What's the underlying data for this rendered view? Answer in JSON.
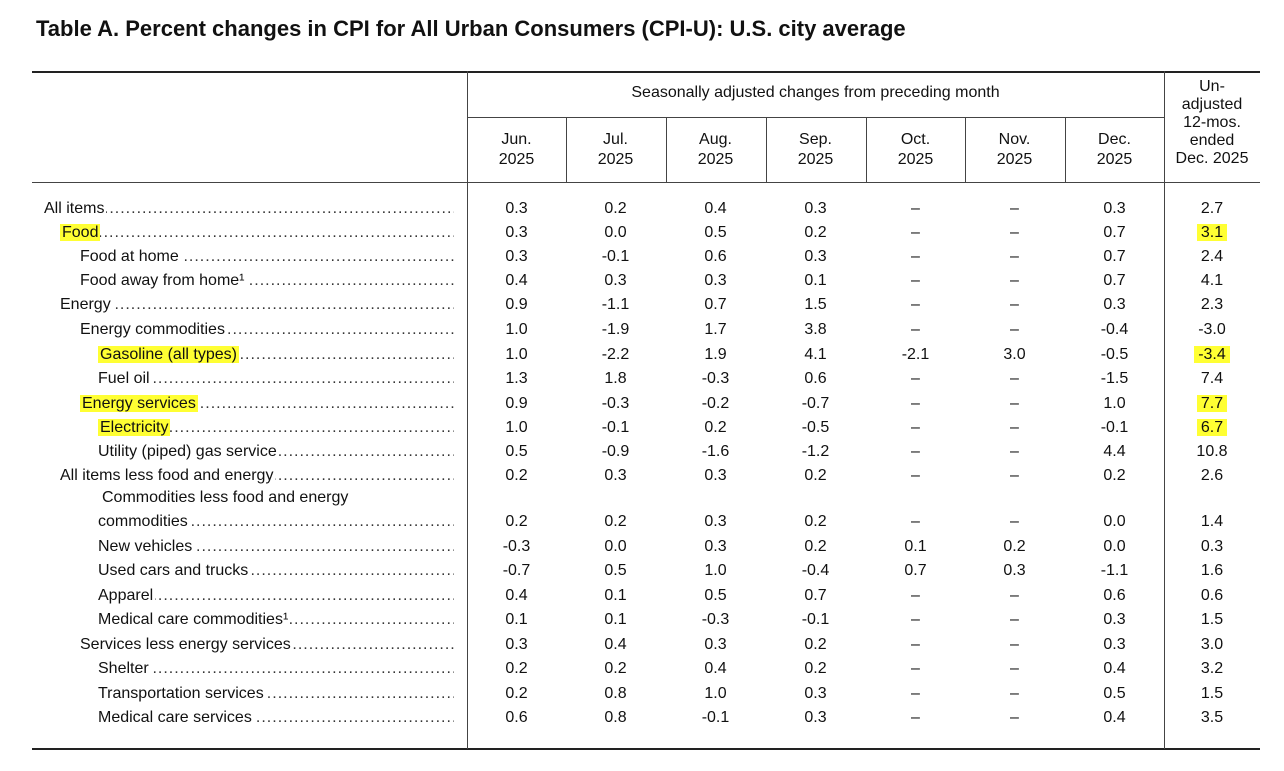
{
  "title": "Table A. Percent changes in CPI for All Urban Consumers (CPI-U): U.S. city average",
  "header": {
    "seasonally_adjusted": "Seasonally adjusted changes from preceding month",
    "months": [
      {
        "month": "Jun.",
        "year": "2025"
      },
      {
        "month": "Jul.",
        "year": "2025"
      },
      {
        "month": "Aug.",
        "year": "2025"
      },
      {
        "month": "Sep.",
        "year": "2025"
      },
      {
        "month": "Oct.",
        "year": "2025"
      },
      {
        "month": "Nov.",
        "year": "2025"
      },
      {
        "month": "Dec.",
        "year": "2025"
      }
    ],
    "unadjusted": [
      "Un-",
      "adjusted",
      "12-mos.",
      "ended",
      "Dec. 2025"
    ]
  },
  "highlight_color": "#ffff33",
  "rows": [
    {
      "label": "All items",
      "indent": 0,
      "highlight": false,
      "values": [
        "0.3",
        "0.2",
        "0.4",
        "0.3",
        "–",
        "–",
        "0.3"
      ],
      "annual": "2.7",
      "annual_highlight": false
    },
    {
      "label": "Food",
      "indent": 1,
      "highlight": true,
      "values": [
        "0.3",
        "0.0",
        "0.5",
        "0.2",
        "–",
        "–",
        "0.7"
      ],
      "annual": "3.1",
      "annual_highlight": true
    },
    {
      "label": "Food at home",
      "indent": 2,
      "highlight": false,
      "values": [
        "0.3",
        "-0.1",
        "0.6",
        "0.3",
        "–",
        "–",
        "0.7"
      ],
      "annual": "2.4",
      "annual_highlight": false
    },
    {
      "label": "Food away from home¹",
      "indent": 2,
      "highlight": false,
      "values": [
        "0.4",
        "0.3",
        "0.3",
        "0.1",
        "–",
        "–",
        "0.7"
      ],
      "annual": "4.1",
      "annual_highlight": false
    },
    {
      "label": "Energy",
      "indent": 1,
      "highlight": false,
      "values": [
        "0.9",
        "-1.1",
        "0.7",
        "1.5",
        "–",
        "–",
        "0.3"
      ],
      "annual": "2.3",
      "annual_highlight": false
    },
    {
      "label": "Energy commodities",
      "indent": 2,
      "highlight": false,
      "values": [
        "1.0",
        "-1.9",
        "1.7",
        "3.8",
        "–",
        "–",
        "-0.4"
      ],
      "annual": "-3.0",
      "annual_highlight": false
    },
    {
      "label": "Gasoline (all types)",
      "indent": 3,
      "highlight": true,
      "values": [
        "1.0",
        "-2.2",
        "1.9",
        "4.1",
        "-2.1",
        "3.0",
        "-0.5"
      ],
      "annual": "-3.4",
      "annual_highlight": true
    },
    {
      "label": "Fuel oil",
      "indent": 3,
      "highlight": false,
      "values": [
        "1.3",
        "1.8",
        "-0.3",
        "0.6",
        "–",
        "–",
        "-1.5"
      ],
      "annual": "7.4",
      "annual_highlight": false
    },
    {
      "label": "Energy services",
      "indent": 2,
      "highlight": true,
      "values": [
        "0.9",
        "-0.3",
        "-0.2",
        "-0.7",
        "–",
        "–",
        "1.0"
      ],
      "annual": "7.7",
      "annual_highlight": true
    },
    {
      "label": "Electricity",
      "indent": 3,
      "highlight": true,
      "values": [
        "1.0",
        "-0.1",
        "0.2",
        "-0.5",
        "–",
        "–",
        "-0.1"
      ],
      "annual": "6.7",
      "annual_highlight": true
    },
    {
      "label": "Utility (piped) gas service",
      "indent": 3,
      "highlight": false,
      "values": [
        "0.5",
        "-0.9",
        "-1.6",
        "-1.2",
        "–",
        "–",
        "4.4"
      ],
      "annual": "10.8",
      "annual_highlight": false
    },
    {
      "label": "All items less food and energy",
      "indent": 1,
      "highlight": false,
      "values": [
        "0.2",
        "0.3",
        "0.3",
        "0.2",
        "–",
        "–",
        "0.2"
      ],
      "annual": "2.6",
      "annual_highlight": false
    },
    {
      "label": "commodities",
      "label_line1": "Commodities less food and energy",
      "indent": 3,
      "highlight": false,
      "values": [
        "0.2",
        "0.2",
        "0.3",
        "0.2",
        "–",
        "–",
        "0.0"
      ],
      "annual": "1.4",
      "annual_highlight": false
    },
    {
      "label": "New vehicles",
      "indent": 3,
      "highlight": false,
      "values": [
        "-0.3",
        "0.0",
        "0.3",
        "0.2",
        "0.1",
        "0.2",
        "0.0"
      ],
      "annual": "0.3",
      "annual_highlight": false
    },
    {
      "label": "Used cars and trucks",
      "indent": 3,
      "highlight": false,
      "values": [
        "-0.7",
        "0.5",
        "1.0",
        "-0.4",
        "0.7",
        "0.3",
        "-1.1"
      ],
      "annual": "1.6",
      "annual_highlight": false
    },
    {
      "label": "Apparel",
      "indent": 3,
      "highlight": false,
      "values": [
        "0.4",
        "0.1",
        "0.5",
        "0.7",
        "–",
        "–",
        "0.6"
      ],
      "annual": "0.6",
      "annual_highlight": false
    },
    {
      "label": "Medical care commodities¹",
      "indent": 4,
      "highlight": false,
      "values": [
        "0.1",
        "0.1",
        "-0.3",
        "-0.1",
        "–",
        "–",
        "0.3"
      ],
      "annual": "1.5",
      "annual_highlight": false
    },
    {
      "label": "Services less energy services",
      "indent": 2,
      "highlight": false,
      "values": [
        "0.3",
        "0.4",
        "0.3",
        "0.2",
        "–",
        "–",
        "0.3"
      ],
      "annual": "3.0",
      "annual_highlight": false
    },
    {
      "label": "Shelter",
      "indent": 4,
      "highlight": false,
      "values": [
        "0.2",
        "0.2",
        "0.4",
        "0.2",
        "–",
        "–",
        "0.4"
      ],
      "annual": "3.2",
      "annual_highlight": false
    },
    {
      "label": "Transportation services",
      "indent": 4,
      "highlight": false,
      "values": [
        "0.2",
        "0.8",
        "1.0",
        "0.3",
        "–",
        "–",
        "0.5"
      ],
      "annual": "1.5",
      "annual_highlight": false
    },
    {
      "label": "Medical care services",
      "indent": 4,
      "highlight": false,
      "values": [
        "0.6",
        "0.8",
        "-0.1",
        "0.3",
        "–",
        "–",
        "0.4"
      ],
      "annual": "3.5",
      "annual_highlight": false
    }
  ]
}
